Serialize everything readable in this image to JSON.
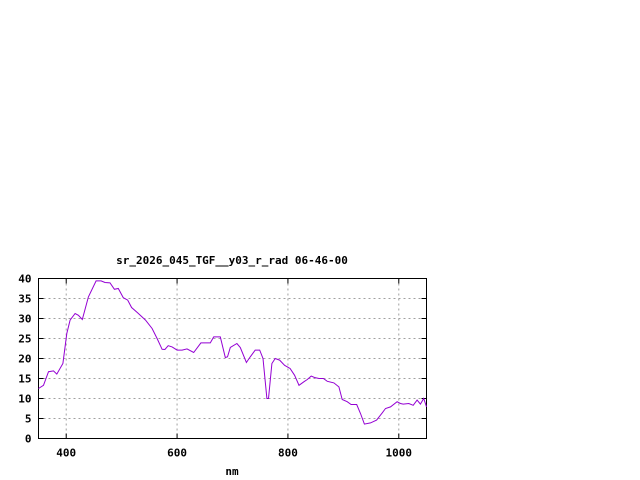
{
  "chart_data": {
    "type": "line",
    "title": "sr_2026_045_TGF__y03_r_rad 06-46-00",
    "xlabel": "nm",
    "ylabel": "",
    "xlim": [
      350,
      1050
    ],
    "ylim": [
      0,
      40
    ],
    "xticks": [
      400,
      600,
      800,
      1000
    ],
    "yticks": [
      0,
      5,
      10,
      15,
      20,
      25,
      30,
      35,
      40
    ],
    "grid": true,
    "line_color": "#9400d3",
    "series": [
      {
        "x": [
          350,
          359,
          368,
          377,
          383,
          394,
          401,
          407,
          416,
          422,
          429,
          440,
          454,
          463,
          470,
          479,
          487,
          494,
          503,
          511,
          518,
          529,
          543,
          555,
          564,
          573,
          578,
          584,
          591,
          600,
          609,
          618,
          630,
          643,
          654,
          660,
          666,
          678,
          687,
          691,
          696,
          708,
          714,
          725,
          732,
          741,
          749,
          755,
          762,
          765,
          771,
          777,
          785,
          794,
          804,
          812,
          820,
          829,
          835,
          842,
          848,
          856,
          864,
          871,
          883,
          892,
          898,
          907,
          914,
          924,
          931,
          938,
          949,
          960,
          970,
          976,
          985,
          997,
          1003,
          1008,
          1018,
          1026,
          1033,
          1039,
          1045,
          1050
        ],
        "y": [
          12.5,
          13.3,
          16.7,
          16.9,
          16.1,
          18.75,
          26.25,
          29.6,
          31.25,
          30.8,
          29.75,
          35.4,
          39.4,
          39.4,
          39,
          38.9,
          37.3,
          37.5,
          35.2,
          34.6,
          32.75,
          31.4,
          29.6,
          27.5,
          25,
          22.3,
          22.25,
          23.2,
          22.9,
          22.1,
          22.1,
          22.4,
          21.5,
          23.9,
          23.9,
          23.9,
          25.4,
          25.4,
          20.25,
          20.4,
          22.75,
          23.75,
          22.75,
          19,
          20.4,
          22.1,
          22.1,
          20,
          10,
          10,
          18.75,
          20,
          19.6,
          18.3,
          17.5,
          15.8,
          13.3,
          14.2,
          14.75,
          15.6,
          15.25,
          15,
          15,
          14.3,
          13.9,
          12.9,
          9.75,
          9.2,
          8.5,
          8.5,
          6.25,
          3.6,
          3.9,
          4.6,
          6.4,
          7.5,
          7.9,
          9.2,
          8.75,
          8.6,
          8.75,
          8.3,
          9.6,
          8.6,
          10,
          7.9
        ]
      }
    ]
  }
}
